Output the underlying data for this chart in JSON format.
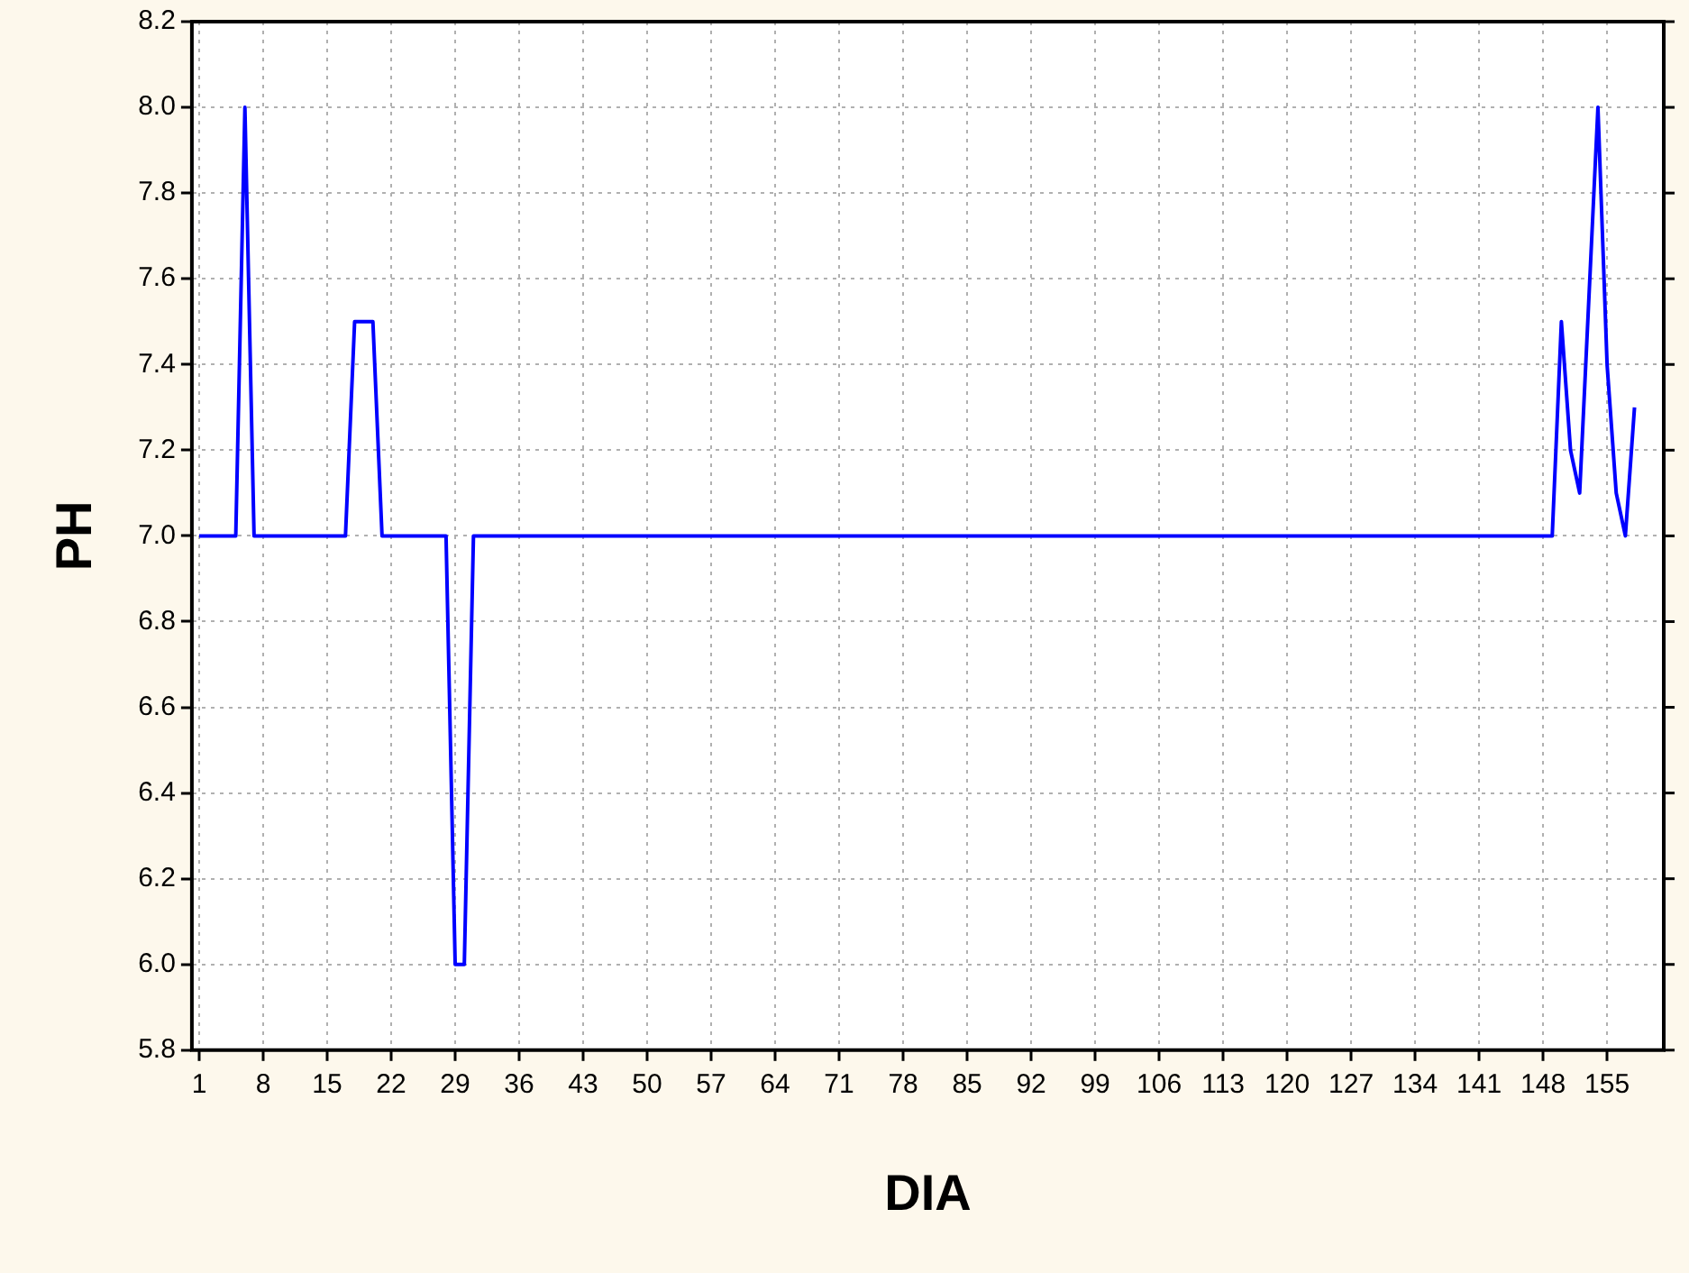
{
  "chart_data": {
    "type": "line",
    "xlabel": "DIA",
    "ylabel": "PH",
    "x": [
      1,
      5,
      6,
      7,
      17,
      18,
      20,
      21,
      28,
      29,
      30,
      31,
      149,
      150,
      151,
      152,
      154,
      155,
      156,
      157,
      158
    ],
    "series": [
      {
        "color": "#0000ff",
        "values": [
          7,
          7,
          8,
          7,
          7,
          7.5,
          7.5,
          7,
          7,
          6,
          6,
          7,
          7,
          7.5,
          7.2,
          7.1,
          8,
          7.4,
          7.1,
          7,
          7.3
        ]
      }
    ],
    "xlim": [
      0.2,
      161.2
    ],
    "xticks": [
      1,
      8,
      15,
      22,
      29,
      36,
      43,
      50,
      57,
      64,
      71,
      78,
      85,
      92,
      99,
      106,
      113,
      120,
      127,
      134,
      141,
      148,
      155
    ],
    "ylim": [
      5.8,
      8.2
    ],
    "yticks": [
      {
        "value": 5.8,
        "label": "5.8"
      },
      {
        "value": 6,
        "label": "6.0"
      },
      {
        "value": 6.2,
        "label": "6.2"
      },
      {
        "value": 6.4,
        "label": "6.4"
      },
      {
        "value": 6.6,
        "label": "6.6"
      },
      {
        "value": 6.8,
        "label": "6.8"
      },
      {
        "value": 7,
        "label": "7.0"
      },
      {
        "value": 7.2,
        "label": "7.2"
      },
      {
        "value": 7.4,
        "label": "7.4"
      },
      {
        "value": 7.6,
        "label": "7.6"
      },
      {
        "value": 7.8,
        "label": "7.8"
      },
      {
        "value": 8,
        "label": "8.0"
      },
      {
        "value": 8.2,
        "label": "8.2"
      }
    ],
    "grid": true,
    "legend": false,
    "marker": "none",
    "line_style": "solid"
  }
}
